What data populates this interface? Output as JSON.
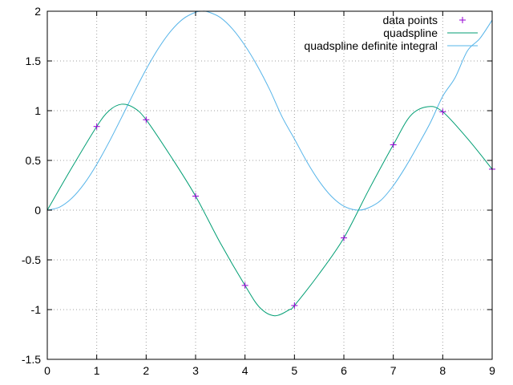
{
  "chart_data": {
    "type": "line",
    "title": "",
    "xlabel": "",
    "ylabel": "",
    "xlim": [
      0,
      9
    ],
    "ylim": [
      -1.5,
      2
    ],
    "grid": true,
    "legend_position": "top-right",
    "x_ticks": [
      "0",
      "1",
      "2",
      "3",
      "4",
      "5",
      "6",
      "7",
      "8",
      "9"
    ],
    "y_ticks": [
      "-1.5",
      "-1",
      "-0.5",
      "0",
      "0.5",
      "1",
      "1.5",
      "2"
    ],
    "series": [
      {
        "name": "data points",
        "kind": "points",
        "marker": "+",
        "color": "#9400d3",
        "x": [
          1,
          2,
          3,
          4,
          5,
          6,
          7,
          8,
          9
        ],
        "y": [
          0.841,
          0.909,
          0.141,
          -0.757,
          -0.959,
          -0.279,
          0.657,
          0.989,
          0.412
        ]
      },
      {
        "name": "quadspline",
        "kind": "line",
        "color": "#009e73",
        "x": [
          0,
          0.5,
          1,
          1.25,
          1.5,
          1.75,
          2,
          2.5,
          3,
          3.5,
          4,
          4.3,
          4.6,
          4.9,
          5,
          5.5,
          6,
          6.5,
          7,
          7.35,
          7.7,
          8,
          8.5,
          9
        ],
        "y": [
          0,
          0.43,
          0.841,
          1.0,
          1.065,
          1.03,
          0.909,
          0.54,
          0.141,
          -0.33,
          -0.757,
          -0.98,
          -1.062,
          -1.0,
          -0.959,
          -0.64,
          -0.279,
          0.2,
          0.657,
          0.95,
          1.04,
          0.989,
          0.72,
          0.412
        ]
      },
      {
        "name": "quadspline definite integral",
        "kind": "line",
        "color": "#56b4e9",
        "x": [
          0,
          0.25,
          0.5,
          0.75,
          1,
          1.25,
          1.5,
          1.75,
          2,
          2.25,
          2.5,
          2.75,
          3,
          3.14,
          3.25,
          3.5,
          3.75,
          4,
          4.25,
          4.5,
          4.75,
          5,
          5.25,
          5.5,
          5.75,
          6,
          6.28,
          6.5,
          6.75,
          7,
          7.25,
          7.5,
          7.75,
          8,
          8.25,
          8.5,
          8.75,
          9
        ],
        "y": [
          0,
          0.031,
          0.122,
          0.268,
          0.46,
          0.685,
          0.929,
          1.178,
          1.416,
          1.628,
          1.801,
          1.924,
          1.99,
          2.0,
          1.994,
          1.937,
          1.82,
          1.654,
          1.45,
          1.211,
          0.938,
          0.716,
          0.488,
          0.291,
          0.138,
          0.04,
          0.0,
          0.024,
          0.1,
          0.246,
          0.436,
          0.653,
          0.88,
          1.145,
          1.332,
          1.602,
          1.725,
          1.911
        ]
      }
    ]
  }
}
